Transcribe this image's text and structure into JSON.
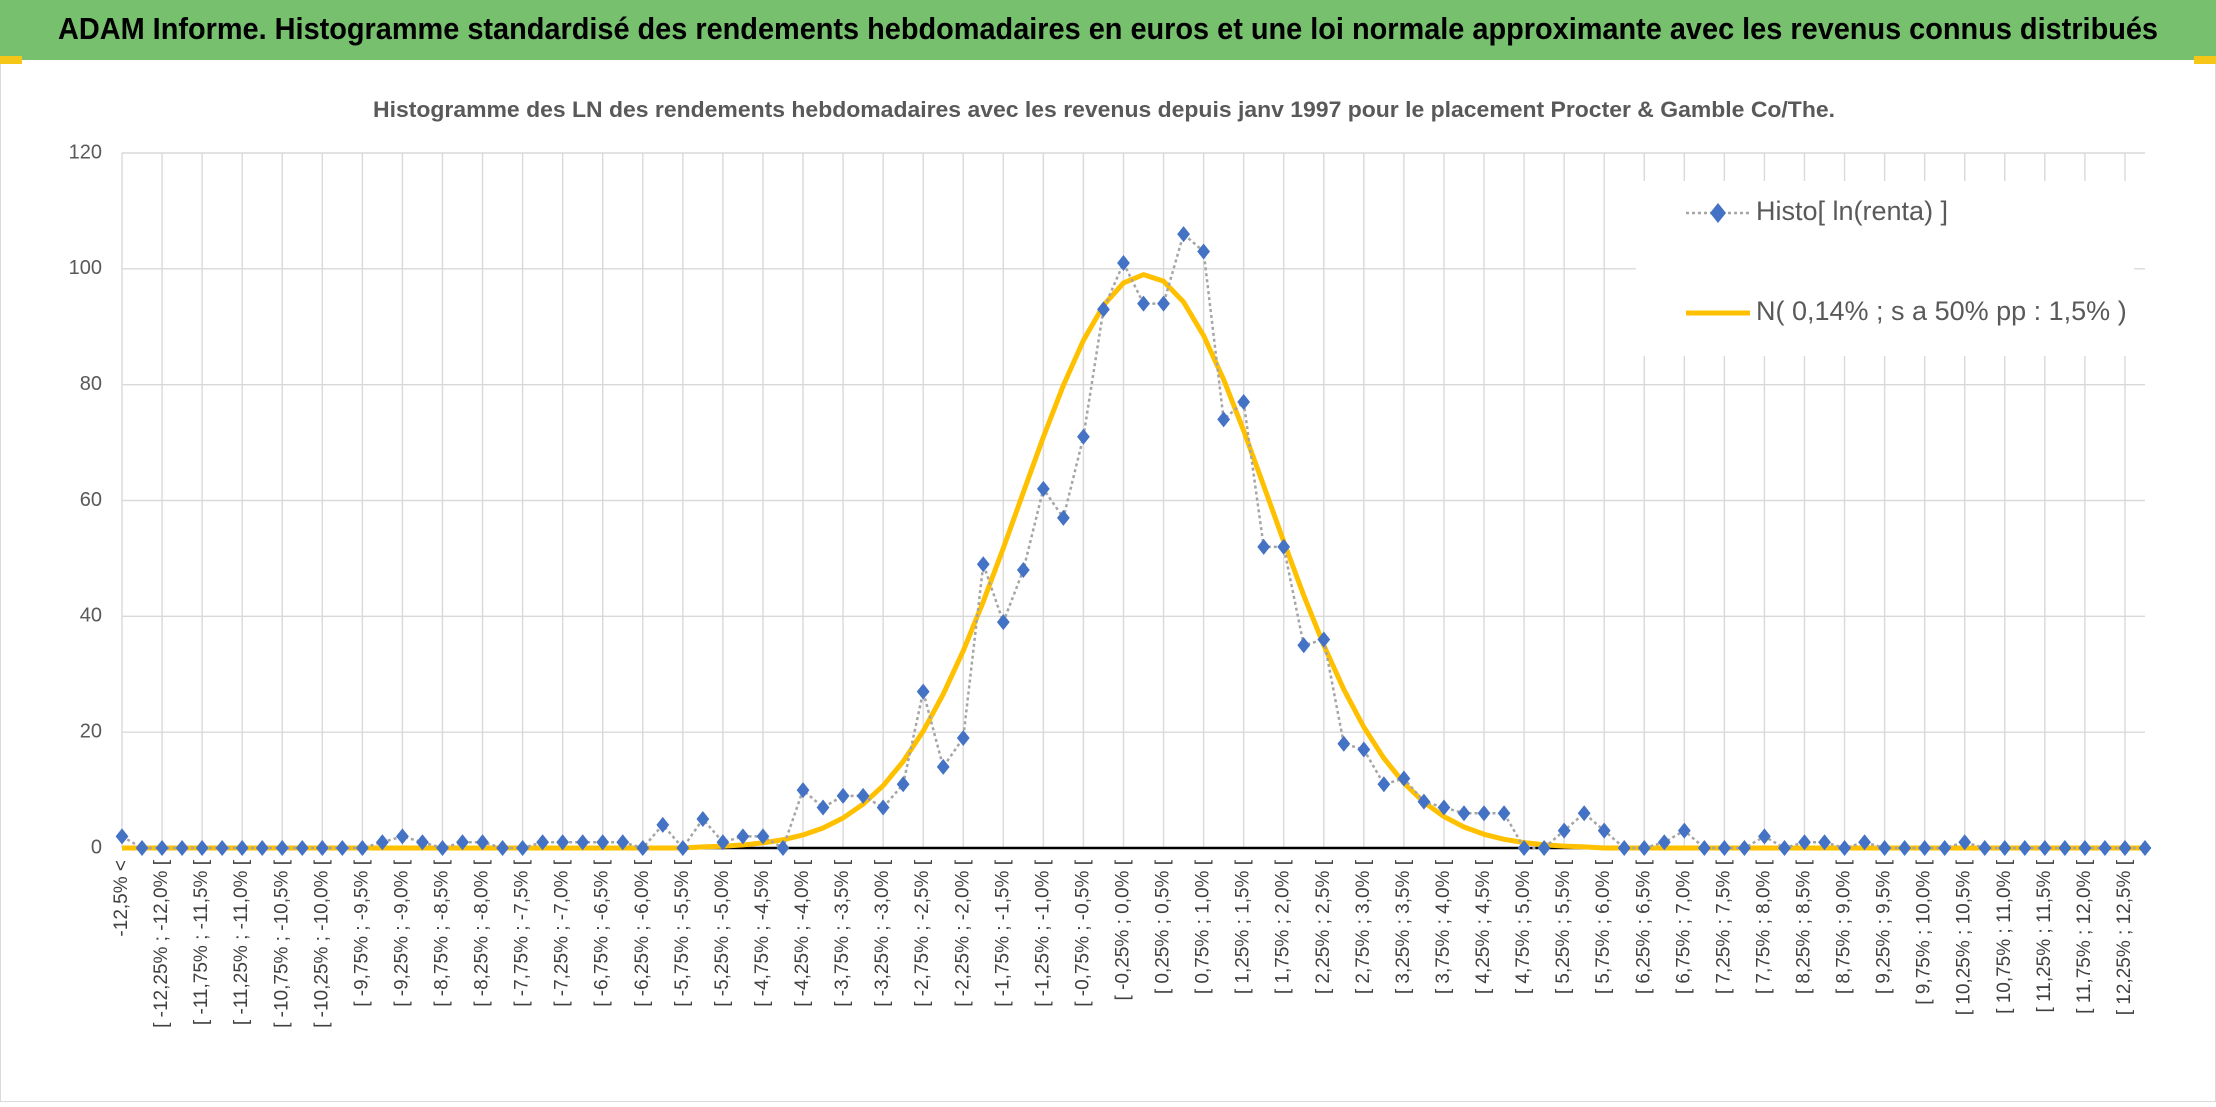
{
  "chart_data": {
    "type": "line",
    "title": "ADAM Informe. Histogramme standardisé des rendements hebdomadaires en euros et une loi normale approximante avec les revenus connus distribués",
    "subtitle": "Histogramme des LN des rendements hebdomadaires avec les revenus depuis janv 1997 pour le placement Procter & Gamble Co/The.",
    "categories": [
      "-12,5% <",
      null,
      "[ -12,25% ; -12,0% [",
      null,
      "[ -11,75% ; -11,5% [",
      null,
      "[ -11,25% ; -11,0% [",
      null,
      "[ -10,75% ; -10,5% [",
      null,
      "[ -10,25% ; -10,0% [",
      null,
      "[ -9,75% ; -9,5% [",
      null,
      "[ -9,25% ; -9,0% [",
      null,
      "[ -8,75% ; -8,5% [",
      null,
      "[ -8,25% ; -8,0% [",
      null,
      "[ -7,75% ; -7,5% [",
      null,
      "[ -7,25% ; -7,0% [",
      null,
      "[ -6,75% ; -6,5% [",
      null,
      "[ -6,25% ; -6,0% [",
      null,
      "[ -5,75% ; -5,5% [",
      null,
      "[ -5,25% ; -5,0% [",
      null,
      "[ -4,75% ; -4,5% [",
      null,
      "[ -4,25% ; -4,0% [",
      null,
      "[ -3,75% ; -3,5% [",
      null,
      "[ -3,25% ; -3,0% [",
      null,
      "[ -2,75% ; -2,5% [",
      null,
      "[ -2,25% ; -2,0% [",
      null,
      "[ -1,75% ; -1,5% [",
      null,
      "[ -1,25% ; -1,0% [",
      null,
      "[ -0,75% ; -0,5% [",
      null,
      "[ -0,25% ; 0,0% [",
      null,
      "[ 0,25% ; 0,5% [",
      null,
      "[ 0,75% ; 1,0% [",
      null,
      "[ 1,25% ; 1,5% [",
      null,
      "[ 1,75% ; 2,0% [",
      null,
      "[ 2,25% ; 2,5% [",
      null,
      "[ 2,75% ; 3,0% [",
      null,
      "[ 3,25% ; 3,5% [",
      null,
      "[ 3,75% ; 4,0% [",
      null,
      "[ 4,25% ; 4,5% [",
      null,
      "[ 4,75% ; 5,0% [",
      null,
      "[ 5,25% ; 5,5% [",
      null,
      "[ 5,75% ; 6,0% [",
      null,
      "[ 6,25% ; 6,5% [",
      null,
      "[ 6,75% ; 7,0% [",
      null,
      "[ 7,25% ; 7,5% [",
      null,
      "[ 7,75% ; 8,0% [",
      null,
      "[ 8,25% ; 8,5% [",
      null,
      "[ 8,75% ; 9,0% [",
      null,
      "[ 9,25% ; 9,5% [",
      null,
      "[ 9,75% ; 10,0% [",
      null,
      "[ 10,25% ; 10,5% [",
      null,
      "[ 10,75% ; 11,0% [",
      null,
      "[ 11,25% ; 11,5% [",
      null,
      "[ 11,75% ; 12,0% [",
      null,
      "[ 12,25% ; 12,5% [",
      null
    ],
    "series": [
      {
        "name": "Histo[ ln(renta) ]",
        "color": "#4472c4",
        "line_color": "#a5a5a5",
        "values": [
          2,
          0,
          0,
          0,
          0,
          0,
          0,
          0,
          0,
          0,
          0,
          0,
          0,
          1,
          2,
          1,
          0,
          1,
          1,
          0,
          0,
          1,
          1,
          1,
          1,
          1,
          0,
          4,
          0,
          5,
          1,
          2,
          2,
          0,
          10,
          7,
          9,
          9,
          7,
          11,
          27,
          14,
          19,
          49,
          39,
          48,
          62,
          57,
          71,
          93,
          101,
          94,
          94,
          106,
          103,
          74,
          77,
          52,
          52,
          35,
          36,
          18,
          17,
          11,
          12,
          8,
          7,
          6,
          6,
          6,
          0,
          0,
          3,
          6,
          3,
          0,
          0,
          1,
          3,
          0,
          0,
          0,
          2,
          0,
          1,
          1,
          0,
          1,
          0,
          0,
          0,
          0,
          1,
          0,
          0,
          0,
          0,
          0,
          0,
          0,
          0,
          0
        ]
      },
      {
        "name": "N( 0,14% ; s a 50% pp : 1,5% )",
        "color": "#ffc000",
        "values": [
          0,
          0,
          0,
          0,
          0,
          0,
          0,
          0,
          0,
          0,
          0,
          0,
          0,
          0,
          0,
          0,
          0,
          0,
          0,
          0,
          0,
          0,
          0,
          0,
          0,
          0,
          0,
          0,
          0,
          0.2,
          0.31,
          0.53,
          0.88,
          1.42,
          2.25,
          3.46,
          5.18,
          7.57,
          10.76,
          14.93,
          20.17,
          26.55,
          34.04,
          42.53,
          51.77,
          61.4,
          70.96,
          79.89,
          87.64,
          93.68,
          97.57,
          99,
          97.87,
          94.27,
          88.47,
          80.89,
          72.07,
          62.56,
          52.92,
          43.6,
          35.01,
          27.38,
          20.87,
          15.5,
          11.22,
          7.91,
          5.43,
          3.63,
          2.37,
          1.5,
          0.93,
          0.56,
          0.33,
          0.2,
          0,
          0,
          0,
          0,
          0,
          0,
          0,
          0,
          0,
          0,
          0,
          0,
          0,
          0,
          0,
          0,
          0,
          0,
          0,
          0,
          0,
          0,
          0,
          0,
          0,
          0,
          0,
          0
        ]
      }
    ],
    "ylim": [
      0,
      120
    ],
    "yticks": [
      0,
      20,
      40,
      60,
      80,
      100,
      120
    ],
    "grid": true,
    "legend": "top-right"
  }
}
